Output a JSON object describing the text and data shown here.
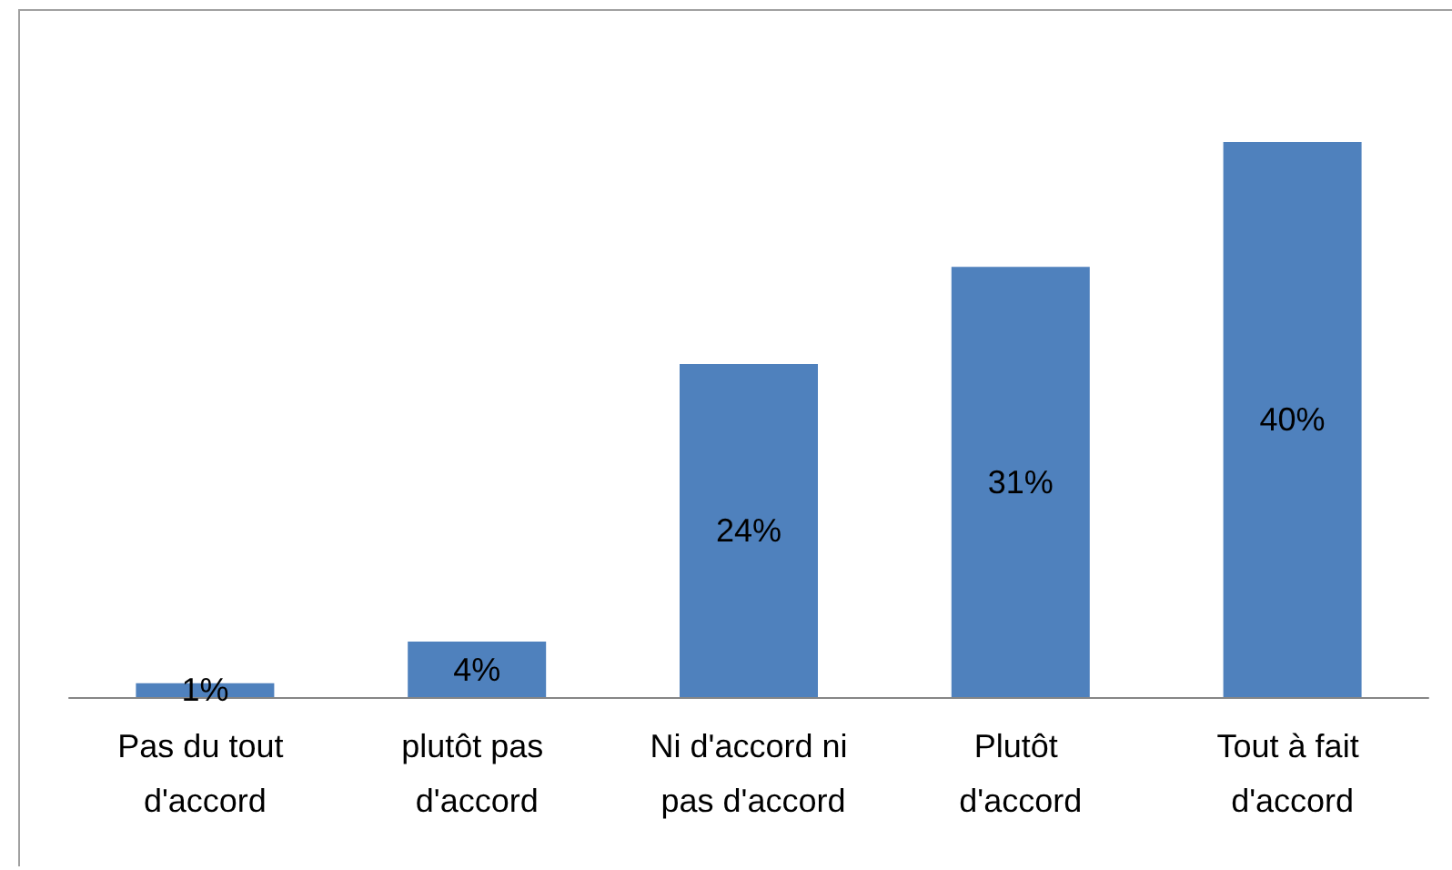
{
  "chart_data": {
    "type": "bar",
    "categories": [
      "Pas du tout d'accord",
      "plutôt pas d'accord",
      "Ni d'accord ni pas d'accord",
      "Plutôt d'accord",
      "Tout à fait d'accord"
    ],
    "values": [
      1,
      4,
      24,
      31,
      40
    ],
    "value_labels": [
      "1%",
      "4%",
      "24%",
      "31%",
      "40%"
    ],
    "color": "#4f81bd"
  }
}
